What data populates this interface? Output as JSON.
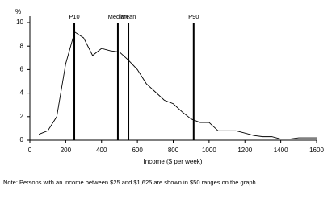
{
  "chart_data": {
    "type": "line",
    "y_unit": "%",
    "x_label": "Income ($ per week)",
    "note": "Note: Persons with an income between $25 and $1,625 are shown in $50 ranges on the graph.",
    "x": [
      50,
      100,
      150,
      200,
      250,
      300,
      350,
      400,
      450,
      500,
      550,
      600,
      650,
      700,
      750,
      800,
      850,
      900,
      950,
      1000,
      1050,
      1100,
      1150,
      1200,
      1250,
      1300,
      1350,
      1400,
      1450,
      1500,
      1550,
      1600
    ],
    "values": [
      0.5,
      0.8,
      2.0,
      6.5,
      9.2,
      8.7,
      7.2,
      7.8,
      7.6,
      7.5,
      6.8,
      6.0,
      4.8,
      4.1,
      3.4,
      3.1,
      2.4,
      1.8,
      1.5,
      1.5,
      0.8,
      0.8,
      0.8,
      0.6,
      0.4,
      0.3,
      0.3,
      0.1,
      0.1,
      0.2,
      0.2,
      0.2
    ],
    "color": "#000000",
    "markers": [
      {
        "label": "P10",
        "value": 248
      },
      {
        "label": "Median",
        "value": 491
      },
      {
        "label": "Mean",
        "value": 550
      },
      {
        "label": "P90",
        "value": 914
      }
    ],
    "xlim": [
      0,
      1600
    ],
    "xticks": [
      0,
      200,
      400,
      600,
      800,
      1000,
      1200,
      1400,
      1600
    ],
    "ylim": [
      0,
      10
    ],
    "yticks": [
      0,
      2,
      4,
      6,
      8,
      10
    ]
  }
}
